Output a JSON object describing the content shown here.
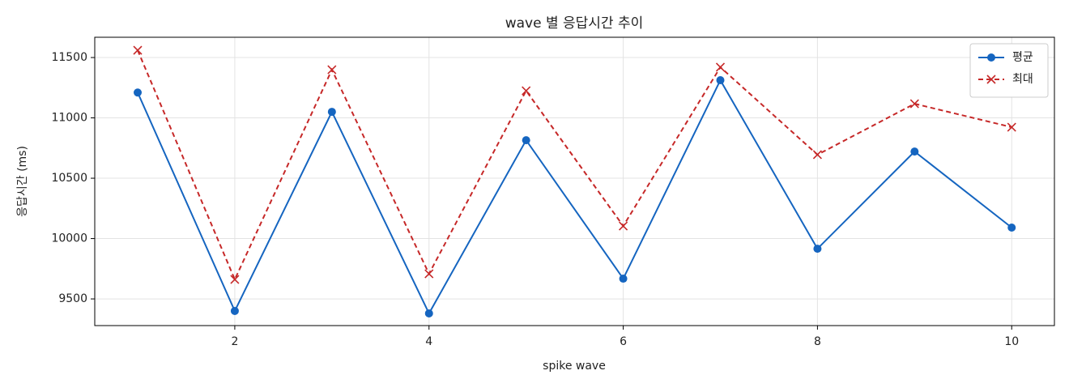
{
  "chart_data": {
    "type": "line",
    "title": "wave 별 응답시간 추이",
    "xlabel": "spike wave",
    "ylabel": "응답시간 (ms)",
    "x": [
      1,
      2,
      3,
      4,
      5,
      6,
      7,
      8,
      9,
      10
    ],
    "series": [
      {
        "name": "평균",
        "color": "#1565c0",
        "marker": "circle",
        "dash": false,
        "values": [
          11210,
          9400,
          11050,
          9380,
          10815,
          9668,
          11312,
          9916,
          10721,
          10091
        ]
      },
      {
        "name": "최대",
        "color": "#c62828",
        "marker": "x",
        "dash": true,
        "values": [
          11560,
          9661,
          11399,
          9708,
          11225,
          10104,
          11420,
          10695,
          11117,
          10923
        ]
      }
    ],
    "xlim": [
      0.558,
      10.44
    ],
    "ylim": [
      9279,
      11668
    ],
    "xticks": [
      2,
      4,
      6,
      8,
      10
    ],
    "yticks": [
      9500,
      10000,
      10500,
      11000,
      11500
    ],
    "grid": true,
    "legend": "upper right"
  }
}
